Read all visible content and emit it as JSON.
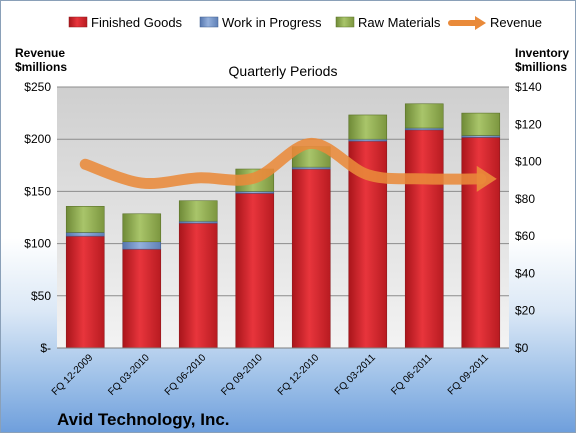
{
  "chart_data": {
    "type": "bar",
    "title": "Quarterly Periods",
    "company": "Avid Technology, Inc.",
    "left_axis_label": "Revenue $millions",
    "right_axis_label": "Inventory $millions",
    "left_axis_title_lines": [
      "Revenue",
      "$millions"
    ],
    "right_axis_title_lines": [
      "Inventory",
      "$millions"
    ],
    "categories": [
      "FQ 12-2009",
      "FQ 03-2010",
      "FQ 06-2010",
      "FQ 09-2010",
      "FQ 12-2010",
      "FQ 03-2011",
      "FQ 06-2011",
      "FQ 09-2011"
    ],
    "left_ylim": [
      0,
      250
    ],
    "right_ylim": [
      0,
      140
    ],
    "left_ticks": [
      0,
      50,
      100,
      150,
      200,
      250
    ],
    "left_tick_labels": [
      "$-",
      "$50",
      "$100",
      "$150",
      "$200",
      "$250"
    ],
    "right_ticks": [
      0,
      20,
      40,
      60,
      80,
      100,
      120,
      140
    ],
    "right_tick_labels": [
      "$0",
      "$20",
      "$40",
      "$60",
      "$80",
      "$100",
      "$120",
      "$140"
    ],
    "legend_position": "top",
    "series": [
      {
        "name": "Finished Goods",
        "axis": "right",
        "color": "#d9242b",
        "values": [
          60,
          53,
          67,
          83,
          96,
          111,
          117,
          113
        ]
      },
      {
        "name": "Work in Progress",
        "axis": "right",
        "color": "#7595c9",
        "values": [
          2,
          4,
          1,
          1,
          1,
          1,
          1,
          1
        ]
      },
      {
        "name": "Raw Materials",
        "axis": "right",
        "color": "#9bbb59",
        "values": [
          14,
          15,
          11,
          12,
          11,
          13,
          13,
          12
        ]
      },
      {
        "name": "Revenue",
        "axis": "left",
        "type": "line",
        "color": "#e98a3a",
        "values": [
          176,
          158,
          163,
          163,
          196,
          166,
          162,
          162
        ]
      }
    ],
    "grid": true
  }
}
